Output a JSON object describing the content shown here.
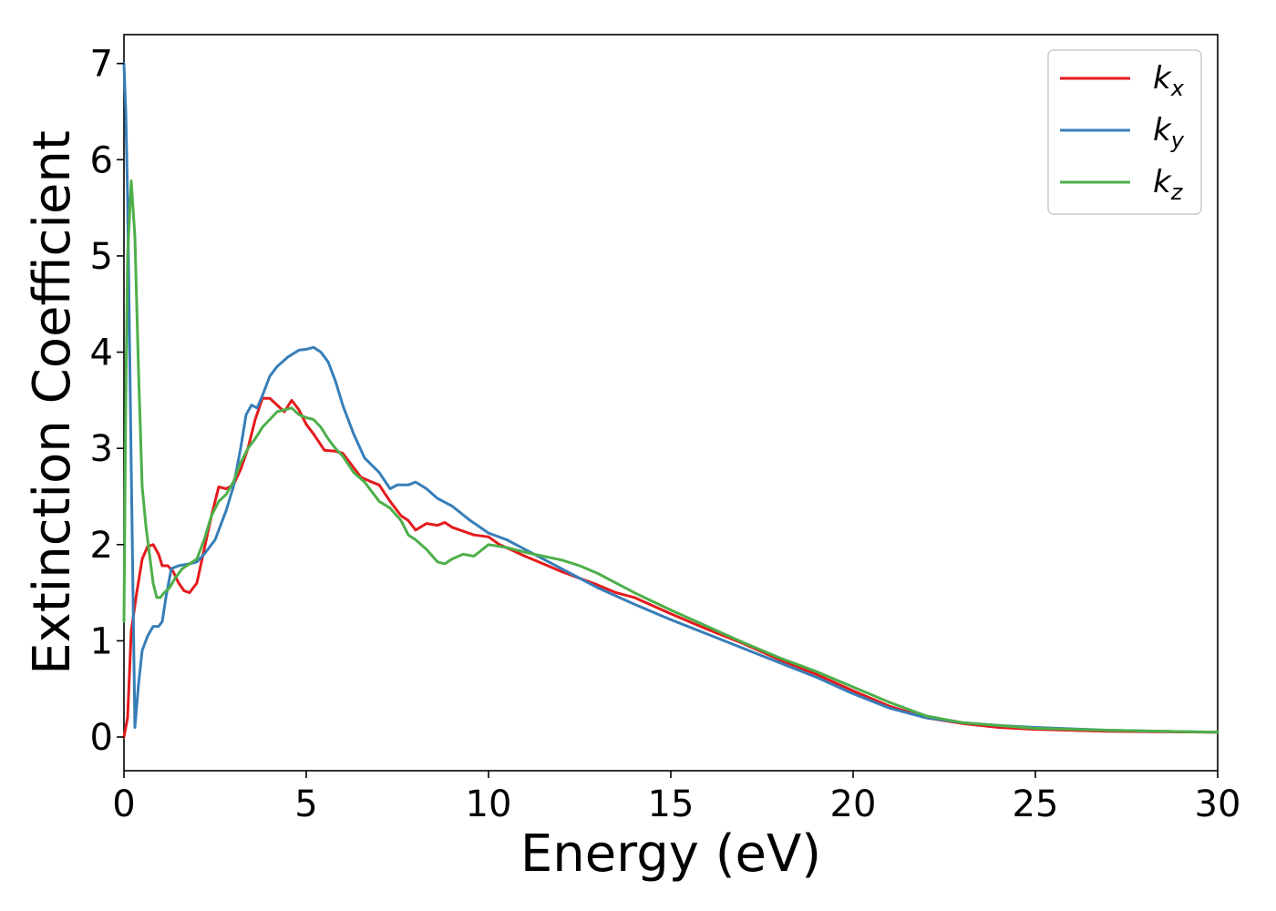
{
  "chart_data": {
    "type": "line",
    "xlabel": "Energy (eV)",
    "ylabel": "Extinction Coefficient",
    "xlim": [
      0,
      30
    ],
    "ylim": [
      -0.35,
      7.3
    ],
    "xticks": [
      0,
      5,
      10,
      15,
      20,
      25,
      30
    ],
    "yticks": [
      0,
      1,
      2,
      3,
      4,
      5,
      6,
      7
    ],
    "grid": false,
    "legend_position": "top-right",
    "series": [
      {
        "name": "kx",
        "base": "k",
        "sub": "x",
        "color": "#e41a1c",
        "x": [
          0,
          0.1,
          0.2,
          0.35,
          0.5,
          0.65,
          0.8,
          0.95,
          1.05,
          1.2,
          1.35,
          1.5,
          1.65,
          1.8,
          2.0,
          2.2,
          2.4,
          2.6,
          2.8,
          3.0,
          3.2,
          3.4,
          3.6,
          3.8,
          4.0,
          4.2,
          4.4,
          4.6,
          4.8,
          5.0,
          5.2,
          5.5,
          5.8,
          6.0,
          6.2,
          6.5,
          6.8,
          7.0,
          7.3,
          7.6,
          7.8,
          8.0,
          8.3,
          8.6,
          8.8,
          9.0,
          9.3,
          9.6,
          10.0,
          10.3,
          10.6,
          11.0,
          11.5,
          12.0,
          12.5,
          13.0,
          13.5,
          14.0,
          15.0,
          16.0,
          17.0,
          18.0,
          19.0,
          20.0,
          21.0,
          22.0,
          23.0,
          24.0,
          25.0,
          27.0,
          30.0
        ],
        "y": [
          0.0,
          0.2,
          1.1,
          1.5,
          1.85,
          1.98,
          2.0,
          1.9,
          1.78,
          1.78,
          1.72,
          1.6,
          1.52,
          1.5,
          1.6,
          1.95,
          2.3,
          2.6,
          2.58,
          2.62,
          2.78,
          3.0,
          3.3,
          3.52,
          3.52,
          3.45,
          3.38,
          3.5,
          3.4,
          3.25,
          3.15,
          2.98,
          2.97,
          2.95,
          2.85,
          2.7,
          2.65,
          2.62,
          2.45,
          2.3,
          2.25,
          2.15,
          2.22,
          2.2,
          2.23,
          2.18,
          2.14,
          2.1,
          2.08,
          2.0,
          1.95,
          1.88,
          1.8,
          1.72,
          1.65,
          1.58,
          1.5,
          1.45,
          1.28,
          1.12,
          0.97,
          0.8,
          0.65,
          0.48,
          0.32,
          0.2,
          0.14,
          0.1,
          0.08,
          0.06,
          0.05
        ]
      },
      {
        "name": "ky",
        "base": "k",
        "sub": "y",
        "color": "#377eb8",
        "x": [
          0,
          0.05,
          0.1,
          0.2,
          0.3,
          0.4,
          0.5,
          0.65,
          0.8,
          0.95,
          1.05,
          1.15,
          1.3,
          1.5,
          1.8,
          2.0,
          2.2,
          2.5,
          2.8,
          3.0,
          3.2,
          3.35,
          3.5,
          3.65,
          3.8,
          4.0,
          4.2,
          4.5,
          4.8,
          5.0,
          5.2,
          5.4,
          5.6,
          5.8,
          6.0,
          6.3,
          6.6,
          7.0,
          7.3,
          7.5,
          7.8,
          8.0,
          8.3,
          8.6,
          9.0,
          9.5,
          10.0,
          10.5,
          11.0,
          12.0,
          13.0,
          14.0,
          15.0,
          16.0,
          17.0,
          18.0,
          19.0,
          20.0,
          21.0,
          22.0,
          23.0,
          24.0,
          25.0,
          27.0,
          30.0
        ],
        "y": [
          7.0,
          6.5,
          5.6,
          2.8,
          0.1,
          0.55,
          0.9,
          1.05,
          1.15,
          1.15,
          1.2,
          1.45,
          1.75,
          1.78,
          1.8,
          1.82,
          1.9,
          2.05,
          2.35,
          2.6,
          3.0,
          3.35,
          3.45,
          3.42,
          3.55,
          3.75,
          3.85,
          3.95,
          4.02,
          4.03,
          4.05,
          4.0,
          3.9,
          3.7,
          3.45,
          3.15,
          2.9,
          2.75,
          2.58,
          2.62,
          2.62,
          2.65,
          2.58,
          2.48,
          2.4,
          2.25,
          2.12,
          2.05,
          1.95,
          1.75,
          1.55,
          1.38,
          1.22,
          1.07,
          0.92,
          0.77,
          0.62,
          0.45,
          0.3,
          0.2,
          0.15,
          0.12,
          0.1,
          0.07,
          0.05
        ]
      },
      {
        "name": "kz",
        "base": "k",
        "sub": "z",
        "color": "#4daf4a",
        "x": [
          0,
          0.05,
          0.1,
          0.2,
          0.3,
          0.4,
          0.5,
          0.6,
          0.7,
          0.8,
          0.9,
          1.0,
          1.1,
          1.25,
          1.4,
          1.6,
          1.8,
          2.0,
          2.2,
          2.4,
          2.6,
          2.8,
          3.0,
          3.2,
          3.4,
          3.6,
          3.8,
          4.0,
          4.2,
          4.4,
          4.6,
          4.8,
          5.0,
          5.2,
          5.4,
          5.6,
          5.8,
          6.0,
          6.3,
          6.6,
          7.0,
          7.3,
          7.6,
          7.8,
          8.0,
          8.3,
          8.6,
          8.8,
          9.0,
          9.3,
          9.6,
          10.0,
          10.5,
          11.0,
          11.5,
          12.0,
          12.5,
          13.0,
          14.0,
          15.0,
          16.0,
          17.0,
          18.0,
          19.0,
          20.0,
          21.0,
          22.0,
          23.0,
          24.0,
          25.0,
          27.0,
          30.0
        ],
        "y": [
          1.2,
          3.5,
          5.0,
          5.78,
          5.2,
          3.8,
          2.6,
          2.2,
          1.9,
          1.6,
          1.45,
          1.45,
          1.5,
          1.55,
          1.65,
          1.75,
          1.8,
          1.85,
          2.05,
          2.3,
          2.45,
          2.52,
          2.65,
          2.85,
          3.0,
          3.1,
          3.22,
          3.3,
          3.38,
          3.4,
          3.42,
          3.35,
          3.32,
          3.3,
          3.22,
          3.1,
          3.0,
          2.92,
          2.75,
          2.65,
          2.45,
          2.38,
          2.25,
          2.1,
          2.05,
          1.95,
          1.82,
          1.8,
          1.85,
          1.9,
          1.88,
          2.0,
          1.97,
          1.92,
          1.88,
          1.84,
          1.78,
          1.7,
          1.5,
          1.32,
          1.15,
          0.98,
          0.82,
          0.68,
          0.52,
          0.36,
          0.22,
          0.15,
          0.12,
          0.09,
          0.07,
          0.05
        ]
      }
    ]
  }
}
